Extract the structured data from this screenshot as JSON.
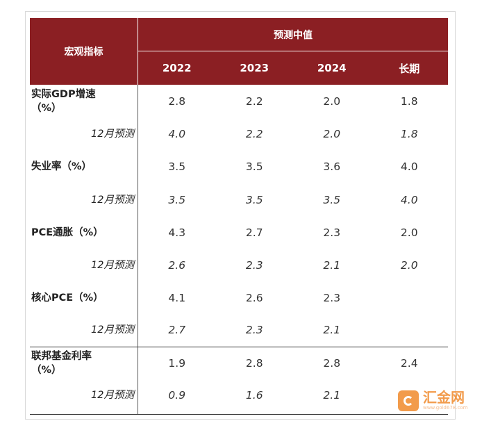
{
  "header": {
    "row_label": "宏观指标",
    "group_label": "预测中值",
    "columns": [
      "2022",
      "2023",
      "2024",
      "长期"
    ]
  },
  "rows": [
    {
      "label_line1": "实际GDP增速",
      "label_line2": "（%）",
      "values": [
        "2.8",
        "2.2",
        "2.0",
        "1.8"
      ]
    },
    {
      "label": "12月预测",
      "values": [
        "4.0",
        "2.2",
        "2.0",
        "1.8"
      ]
    },
    {
      "label_line1": "失业率（%）",
      "values": [
        "3.5",
        "3.5",
        "3.6",
        "4.0"
      ]
    },
    {
      "label": "12月预测",
      "values": [
        "3.5",
        "3.5",
        "3.5",
        "4.0"
      ]
    },
    {
      "label_line1": "PCE通胀（%）",
      "values": [
        "4.3",
        "2.7",
        "2.3",
        "2.0"
      ]
    },
    {
      "label": "12月预测",
      "values": [
        "2.6",
        "2.3",
        "2.1",
        "2.0"
      ]
    },
    {
      "label_line1": "核心PCE（%）",
      "values": [
        "4.1",
        "2.6",
        "2.3",
        ""
      ]
    },
    {
      "label": "12月预测",
      "values": [
        "2.7",
        "2.3",
        "2.1",
        ""
      ]
    },
    {
      "label_line1": "联邦基金利率",
      "label_line2": "（%）",
      "values": [
        "1.9",
        "2.8",
        "2.8",
        "2.4"
      ]
    },
    {
      "label": "12月预测",
      "values": [
        "0.9",
        "1.6",
        "2.1",
        ""
      ]
    }
  ],
  "watermark": {
    "name": "汇金网",
    "url": "www.gold678.com",
    "icon": "huijin-logo-icon",
    "color": "#f08a2c"
  },
  "colors": {
    "header_bg": "#8b1f23",
    "header_text": "#ffffff"
  }
}
